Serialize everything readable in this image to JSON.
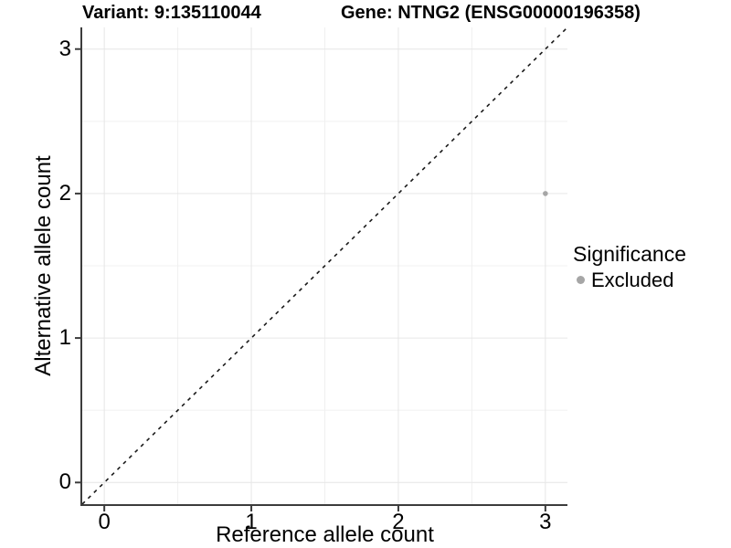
{
  "header": {
    "variant_title": "Variant: 9:135110044",
    "gene_title": "Gene: NTNG2 (ENSG00000196358)"
  },
  "chart_data": {
    "type": "scatter",
    "title_left": "Variant: 9:135110044",
    "title_right": "Gene: NTNG2 (ENSG00000196358)",
    "xlabel": "Reference allele count",
    "ylabel": "Alternative allele count",
    "xlim": [
      -0.15,
      3.15
    ],
    "ylim": [
      -0.15,
      3.15
    ],
    "xticks": [
      0,
      1,
      2,
      3
    ],
    "yticks": [
      0,
      1,
      2,
      3
    ],
    "minor_ticks": [
      0.5,
      1.5,
      2.5
    ],
    "grid": true,
    "reference_line": {
      "type": "identity",
      "style": "dashed",
      "from": -0.15,
      "to": 3.15
    },
    "points": [
      {
        "x": 3,
        "y": 2,
        "significance": "Excluded"
      }
    ],
    "legend": {
      "title": "Significance",
      "position": "right",
      "entries": [
        {
          "label": "Excluded",
          "color": "#a6a6a6"
        }
      ]
    },
    "colors": {
      "point": "#a6a6a6",
      "grid_major": "#e6e6e6",
      "grid_minor": "#f0f0f0",
      "axis": "#3c3c3c",
      "reference_line": "#1a1a1a",
      "text": "#000000",
      "background": "#ffffff"
    }
  }
}
